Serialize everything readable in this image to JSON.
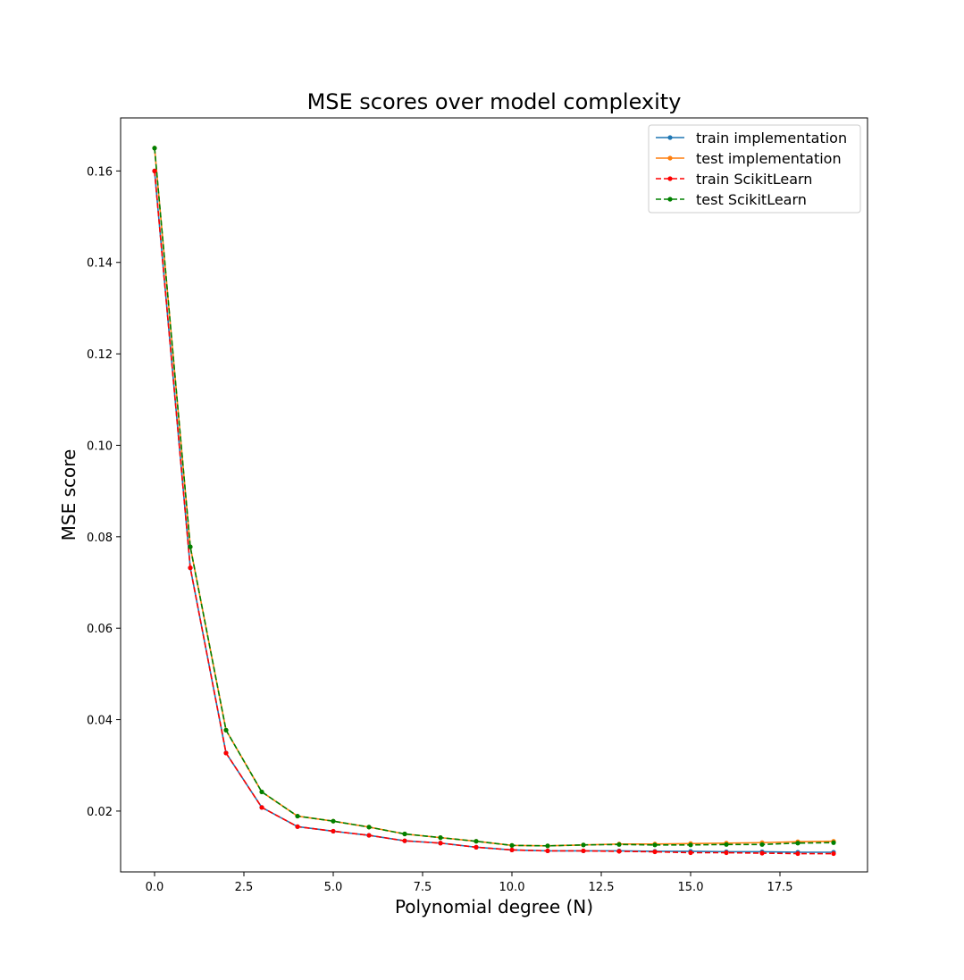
{
  "chart_data": {
    "type": "line",
    "title": "MSE scores over model complexity",
    "xlabel": "Polynomial degree (N)",
    "ylabel": "MSE score",
    "xlim": [
      -0.95,
      19.95
    ],
    "ylim": [
      0.0067,
      0.1716
    ],
    "xticks": [
      0.0,
      2.5,
      5.0,
      7.5,
      10.0,
      12.5,
      15.0,
      17.5
    ],
    "xtick_labels": [
      "0.0",
      "2.5",
      "5.0",
      "7.5",
      "10.0",
      "12.5",
      "15.0",
      "17.5"
    ],
    "yticks": [
      0.02,
      0.04,
      0.06,
      0.08,
      0.1,
      0.12,
      0.14,
      0.16
    ],
    "ytick_labels": [
      "0.02",
      "0.04",
      "0.06",
      "0.08",
      "0.10",
      "0.12",
      "0.14",
      "0.16"
    ],
    "grid": false,
    "legend_position": "top-right",
    "x": [
      0,
      1,
      2,
      3,
      4,
      5,
      6,
      7,
      8,
      9,
      10,
      11,
      12,
      13,
      14,
      15,
      16,
      17,
      18,
      19
    ],
    "series": [
      {
        "name": "train implementation",
        "color": "#1f77b4",
        "linestyle": "solid",
        "values": [
          0.16,
          0.0732,
          0.0327,
          0.0208,
          0.0166,
          0.0156,
          0.0147,
          0.0135,
          0.013,
          0.0121,
          0.0115,
          0.0113,
          0.0113,
          0.0113,
          0.0112,
          0.0112,
          0.0111,
          0.0111,
          0.011,
          0.011
        ]
      },
      {
        "name": "test implementation",
        "color": "#ff7f0e",
        "linestyle": "solid",
        "values": [
          0.165,
          0.0778,
          0.0377,
          0.0242,
          0.0189,
          0.0178,
          0.0165,
          0.015,
          0.0142,
          0.0134,
          0.0125,
          0.0124,
          0.0126,
          0.0128,
          0.0128,
          0.0129,
          0.013,
          0.0131,
          0.0133,
          0.0134
        ]
      },
      {
        "name": "train ScikitLearn",
        "color": "#ff0000",
        "linestyle": "dashed",
        "values": [
          0.16,
          0.0732,
          0.0327,
          0.0208,
          0.0166,
          0.0156,
          0.0147,
          0.0135,
          0.013,
          0.0121,
          0.0115,
          0.0113,
          0.0113,
          0.0112,
          0.0111,
          0.0109,
          0.0109,
          0.0108,
          0.0107,
          0.0107
        ]
      },
      {
        "name": "test ScikitLearn",
        "color": "#008000",
        "linestyle": "dashed",
        "values": [
          0.165,
          0.0778,
          0.0377,
          0.0242,
          0.0189,
          0.0178,
          0.0165,
          0.015,
          0.0142,
          0.0134,
          0.0125,
          0.0124,
          0.0126,
          0.0127,
          0.0126,
          0.0126,
          0.0127,
          0.0127,
          0.013,
          0.0131
        ]
      }
    ]
  }
}
